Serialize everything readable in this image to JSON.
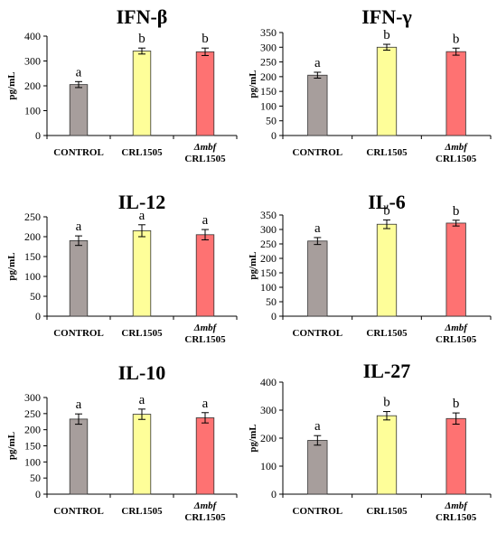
{
  "chart_data": [
    {
      "type": "bar",
      "title": "IFN-β",
      "ylabel": "pg/mL",
      "ylim": [
        0,
        400
      ],
      "yticks": [
        0,
        100,
        200,
        300,
        400
      ],
      "categories": [
        "CONTROL",
        "CRL1505",
        "Δmbf CRL1505"
      ],
      "category_labels": [
        {
          "italic": "",
          "text": "CONTROL"
        },
        {
          "italic": "",
          "text": "CRL1505"
        },
        {
          "italic": "Δmbf",
          "text": "CRL1505"
        }
      ],
      "values": [
        205,
        340,
        337
      ],
      "errors": [
        12,
        12,
        15
      ],
      "letters": [
        "a",
        "b",
        "b"
      ],
      "colors": [
        "#a79e9c",
        "#fefe99",
        "#fe7272"
      ],
      "grid": false
    },
    {
      "type": "bar",
      "title": "IFN-γ",
      "ylabel": "pg/mL",
      "ylim": [
        0,
        350
      ],
      "yticks": [
        0,
        50,
        100,
        150,
        200,
        250,
        300,
        350
      ],
      "categories": [
        "CONTROL",
        "CRL1505",
        "Δmbf CRL1505"
      ],
      "category_labels": [
        {
          "italic": "",
          "text": "CONTROL"
        },
        {
          "italic": "",
          "text": "CRL1505"
        },
        {
          "italic": "Δmbf",
          "text": "CRL1505"
        }
      ],
      "values": [
        205,
        300,
        285
      ],
      "errors": [
        10,
        10,
        12
      ],
      "letters": [
        "a",
        "b",
        "b"
      ],
      "colors": [
        "#a79e9c",
        "#fefe99",
        "#fe7272"
      ],
      "grid": false
    },
    {
      "type": "bar",
      "title": "IL-12",
      "ylabel": "pg/mL",
      "ylim": [
        0,
        250
      ],
      "yticks": [
        0,
        50,
        100,
        150,
        200,
        250
      ],
      "categories": [
        "CONTROL",
        "CRL1505",
        "Δmbf CRL1505"
      ],
      "category_labels": [
        {
          "italic": "",
          "text": "CONTROL"
        },
        {
          "italic": "",
          "text": "CRL1505"
        },
        {
          "italic": "Δmbf",
          "text": "CRL1505"
        }
      ],
      "values": [
        190,
        215,
        205
      ],
      "errors": [
        12,
        15,
        13
      ],
      "letters": [
        "a",
        "a",
        "a"
      ],
      "colors": [
        "#a79e9c",
        "#fefe99",
        "#fe7272"
      ],
      "grid": false
    },
    {
      "type": "bar",
      "title": "IL-6",
      "ylabel": "pg/mL",
      "ylim": [
        0,
        350
      ],
      "yticks": [
        0,
        50,
        100,
        150,
        200,
        250,
        300,
        350
      ],
      "categories": [
        "CONTROL",
        "CRL1505",
        "Δmbf CRL1505"
      ],
      "category_labels": [
        {
          "italic": "",
          "text": "CONTROL"
        },
        {
          "italic": "",
          "text": "CRL1505"
        },
        {
          "italic": "Δmbf",
          "text": "CRL1505"
        }
      ],
      "values": [
        260,
        318,
        322
      ],
      "errors": [
        12,
        15,
        10
      ],
      "letters": [
        "a",
        "b",
        "b"
      ],
      "colors": [
        "#a79e9c",
        "#fefe99",
        "#fe7272"
      ],
      "grid": false
    },
    {
      "type": "bar",
      "title": "IL-10",
      "ylabel": "pg/mL",
      "ylim": [
        0,
        300
      ],
      "yticks": [
        0,
        50,
        100,
        150,
        200,
        250,
        300
      ],
      "categories": [
        "CONTROL",
        "CRL1505",
        "Δmbf CRL1505"
      ],
      "category_labels": [
        {
          "italic": "",
          "text": "CONTROL"
        },
        {
          "italic": "",
          "text": "CRL1505"
        },
        {
          "italic": "Δmbf",
          "text": "CRL1505"
        }
      ],
      "values": [
        233,
        248,
        237
      ],
      "errors": [
        16,
        16,
        16
      ],
      "letters": [
        "a",
        "a",
        "a"
      ],
      "colors": [
        "#a79e9c",
        "#fefe99",
        "#fe7272"
      ],
      "grid": false
    },
    {
      "type": "bar",
      "title": "IL-27",
      "ylabel": "pg/mL",
      "ylim": [
        0,
        400
      ],
      "yticks": [
        0,
        100,
        200,
        300,
        400
      ],
      "categories": [
        "CONTROL",
        "CRL1505",
        "Δmbf CRL1505"
      ],
      "category_labels": [
        {
          "italic": "",
          "text": "CONTROL"
        },
        {
          "italic": "",
          "text": "CRL1505"
        },
        {
          "italic": "Δmbf",
          "text": "CRL1505"
        }
      ],
      "values": [
        192,
        280,
        270
      ],
      "errors": [
        17,
        15,
        20
      ],
      "letters": [
        "a",
        "b",
        "b"
      ],
      "colors": [
        "#a79e9c",
        "#fefe99",
        "#fe7272"
      ],
      "grid": false
    }
  ]
}
